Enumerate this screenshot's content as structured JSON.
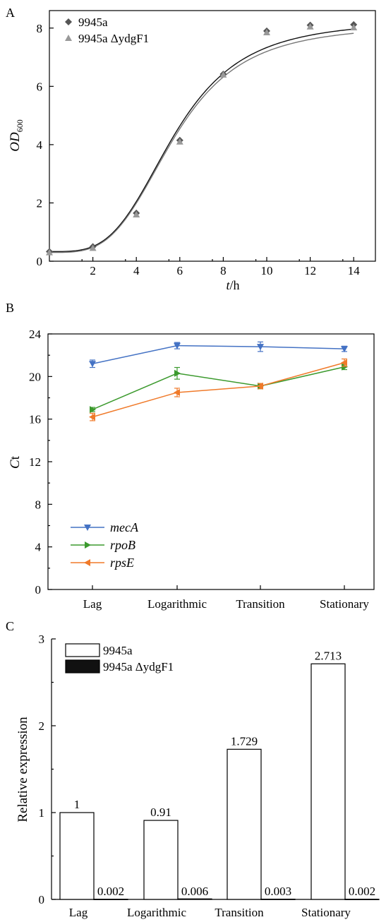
{
  "chart_data": [
    {
      "panel": "A",
      "type": "scatter",
      "xlabel_italic": "t",
      "xlabel_unit": "/h",
      "ylabel_main": "OD",
      "ylabel_sub": "600",
      "xlim": [
        0,
        15
      ],
      "ylim": [
        0,
        8.6
      ],
      "xticks": [
        2,
        4,
        6,
        8,
        10,
        12,
        14
      ],
      "yticks": [
        0,
        2,
        4,
        6,
        8
      ],
      "legend_position": "top-left",
      "fit_curve": true,
      "series": [
        {
          "name": "9945a",
          "marker": "diamond",
          "color": "#555555",
          "x": [
            0,
            2,
            4,
            6,
            8,
            10,
            12,
            14
          ],
          "y": [
            0.33,
            0.5,
            1.65,
            4.15,
            6.42,
            7.9,
            8.1,
            8.12
          ]
        },
        {
          "name": "9945a ΔydgF1",
          "marker": "triangle-up",
          "color": "#999999",
          "x": [
            0,
            2,
            4,
            6,
            8,
            10,
            12,
            14
          ],
          "y": [
            0.3,
            0.45,
            1.6,
            4.1,
            6.4,
            7.85,
            8.05,
            8.02
          ]
        }
      ]
    },
    {
      "panel": "B",
      "type": "line",
      "ylabel_italic": "C",
      "ylabel_rest": "t",
      "categories": [
        "Lag",
        "Logarithmic",
        "Transition",
        "Stationary"
      ],
      "ylim": [
        0,
        24
      ],
      "yticks": [
        0,
        4,
        8,
        12,
        16,
        20,
        24
      ],
      "legend_position": "bottom-left",
      "series": [
        {
          "name": "mecA",
          "marker": "triangle-down",
          "color": "#4472C4",
          "values": [
            21.2,
            22.9,
            22.8,
            22.6
          ],
          "errors": [
            0.35,
            0.3,
            0.45,
            0.25
          ]
        },
        {
          "name": "rpoB",
          "marker": "triangle-right",
          "color": "#3C9A2E",
          "values": [
            16.9,
            20.3,
            19.1,
            20.9
          ],
          "errors": [
            0.2,
            0.55,
            0.25,
            0.25
          ]
        },
        {
          "name": "rpsE",
          "marker": "triangle-left",
          "color": "#F07A2A",
          "values": [
            16.2,
            18.5,
            19.1,
            21.3
          ],
          "errors": [
            0.35,
            0.4,
            0.25,
            0.35
          ]
        }
      ]
    },
    {
      "panel": "C",
      "type": "bar",
      "ylabel": "Relative expression",
      "categories": [
        "Lag",
        "Logarithmic",
        "Transition",
        "Stationary"
      ],
      "ylim": [
        0,
        3
      ],
      "yticks": [
        0,
        1,
        2,
        3
      ],
      "legend_position": "top-left",
      "series": [
        {
          "name": "9945a",
          "fill": "#ffffff",
          "values": [
            1,
            0.91,
            1.729,
            2.713
          ],
          "labels": [
            "1",
            "0.91",
            "1.729",
            "2.713"
          ]
        },
        {
          "name": "9945a ΔydgF1",
          "fill": "#111111",
          "values": [
            0.002,
            0.006,
            0.003,
            0.002
          ],
          "labels": [
            "0.002",
            "0.006",
            "0.003",
            "0.002"
          ]
        }
      ]
    }
  ],
  "panel_letters": [
    "A",
    "B",
    "C"
  ]
}
